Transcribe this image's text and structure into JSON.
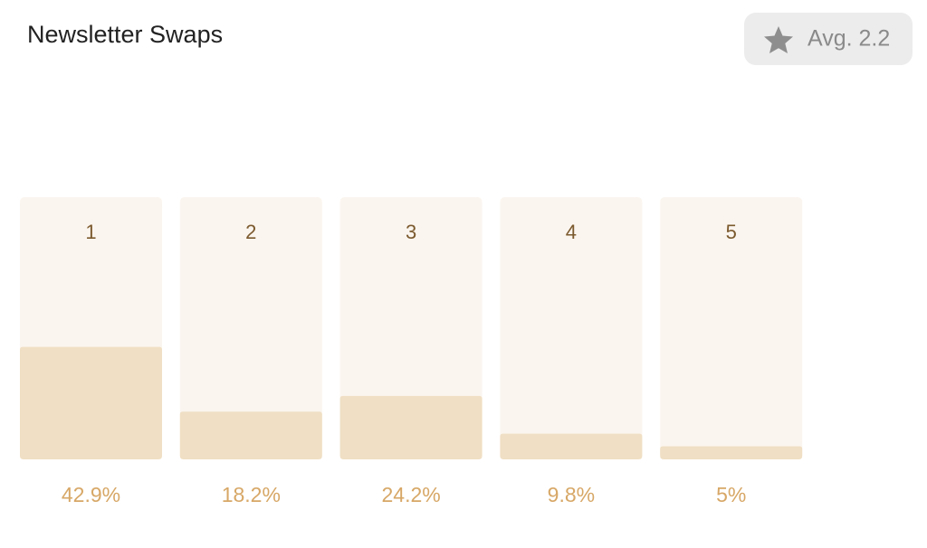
{
  "chart_data": {
    "type": "bar",
    "title": "Newsletter Swaps",
    "annotation": "Avg. 2.2",
    "categories": [
      "1",
      "2",
      "3",
      "4",
      "5"
    ],
    "values": [
      42.9,
      18.2,
      24.2,
      9.8,
      5
    ],
    "value_labels": [
      "42.9%",
      "18.2%",
      "24.2%",
      "9.8%",
      "5%"
    ],
    "color": "#f0dfc4",
    "ylim": [
      0,
      100
    ]
  }
}
